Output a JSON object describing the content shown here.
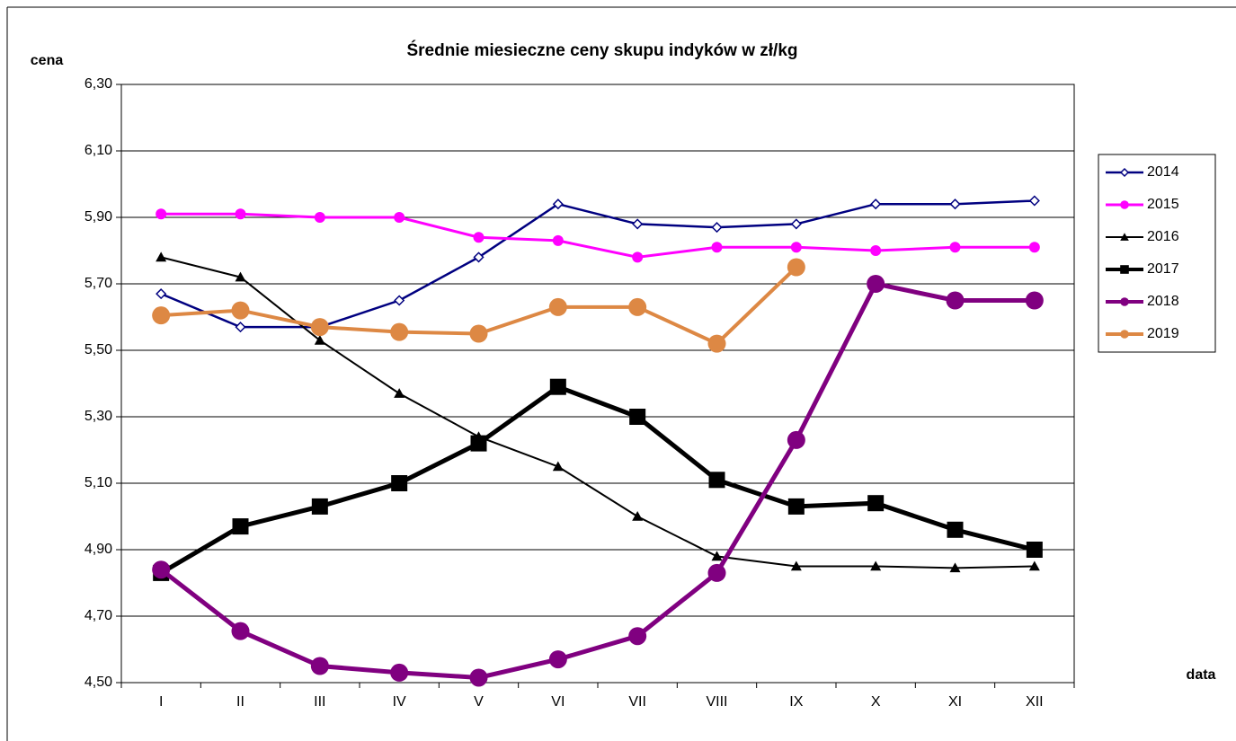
{
  "chart_data": {
    "type": "line",
    "title": "Średnie miesieczne ceny skupu indyków w zł/kg",
    "y_label": "cena",
    "x_label": "data",
    "categories": [
      "I",
      "II",
      "III",
      "IV",
      "V",
      "VI",
      "VII",
      "VIII",
      "IX",
      "X",
      "XI",
      "XII"
    ],
    "ylim": [
      4.5,
      6.3
    ],
    "yticks": [
      {
        "value": 4.5,
        "label": "4,50"
      },
      {
        "value": 4.7,
        "label": "4,70"
      },
      {
        "value": 4.9,
        "label": "4,90"
      },
      {
        "value": 5.1,
        "label": "5,10"
      },
      {
        "value": 5.3,
        "label": "5,30"
      },
      {
        "value": 5.5,
        "label": "5,50"
      },
      {
        "value": 5.7,
        "label": "5,70"
      },
      {
        "value": 5.9,
        "label": "5,90"
      },
      {
        "value": 6.1,
        "label": "6,10"
      },
      {
        "value": 6.3,
        "label": "6,30"
      }
    ],
    "grid": true,
    "legend": "right",
    "series": [
      {
        "name": "2014",
        "color": "#000080",
        "marker": "diamond",
        "values": [
          5.67,
          5.57,
          5.57,
          5.65,
          5.78,
          5.94,
          5.88,
          5.87,
          5.88,
          5.94,
          5.94,
          5.95
        ]
      },
      {
        "name": "2015",
        "color": "#ff00ff",
        "marker": "circle",
        "values": [
          5.91,
          5.91,
          5.9,
          5.9,
          5.84,
          5.83,
          5.78,
          5.81,
          5.81,
          5.8,
          5.81,
          5.81
        ]
      },
      {
        "name": "2016",
        "color": "#000000",
        "marker": "triangle",
        "values": [
          5.78,
          5.72,
          5.53,
          5.37,
          5.24,
          5.15,
          5.0,
          4.88,
          4.85,
          4.85,
          4.845,
          4.85
        ]
      },
      {
        "name": "2017",
        "color": "#000000",
        "marker": "square",
        "values": [
          4.83,
          4.97,
          5.03,
          5.1,
          5.22,
          5.39,
          5.3,
          5.11,
          5.03,
          5.04,
          4.96,
          4.9
        ]
      },
      {
        "name": "2018",
        "color": "#800080",
        "marker": "circle",
        "values": [
          4.84,
          4.655,
          4.55,
          4.53,
          4.515,
          4.57,
          4.64,
          4.83,
          5.23,
          5.7,
          5.65,
          5.65
        ]
      },
      {
        "name": "2019",
        "color": "#dd8844",
        "marker": "circle",
        "values": [
          5.605,
          5.62,
          5.57,
          5.555,
          5.55,
          5.63,
          5.63,
          5.52,
          5.75,
          null,
          null,
          null
        ]
      }
    ]
  }
}
